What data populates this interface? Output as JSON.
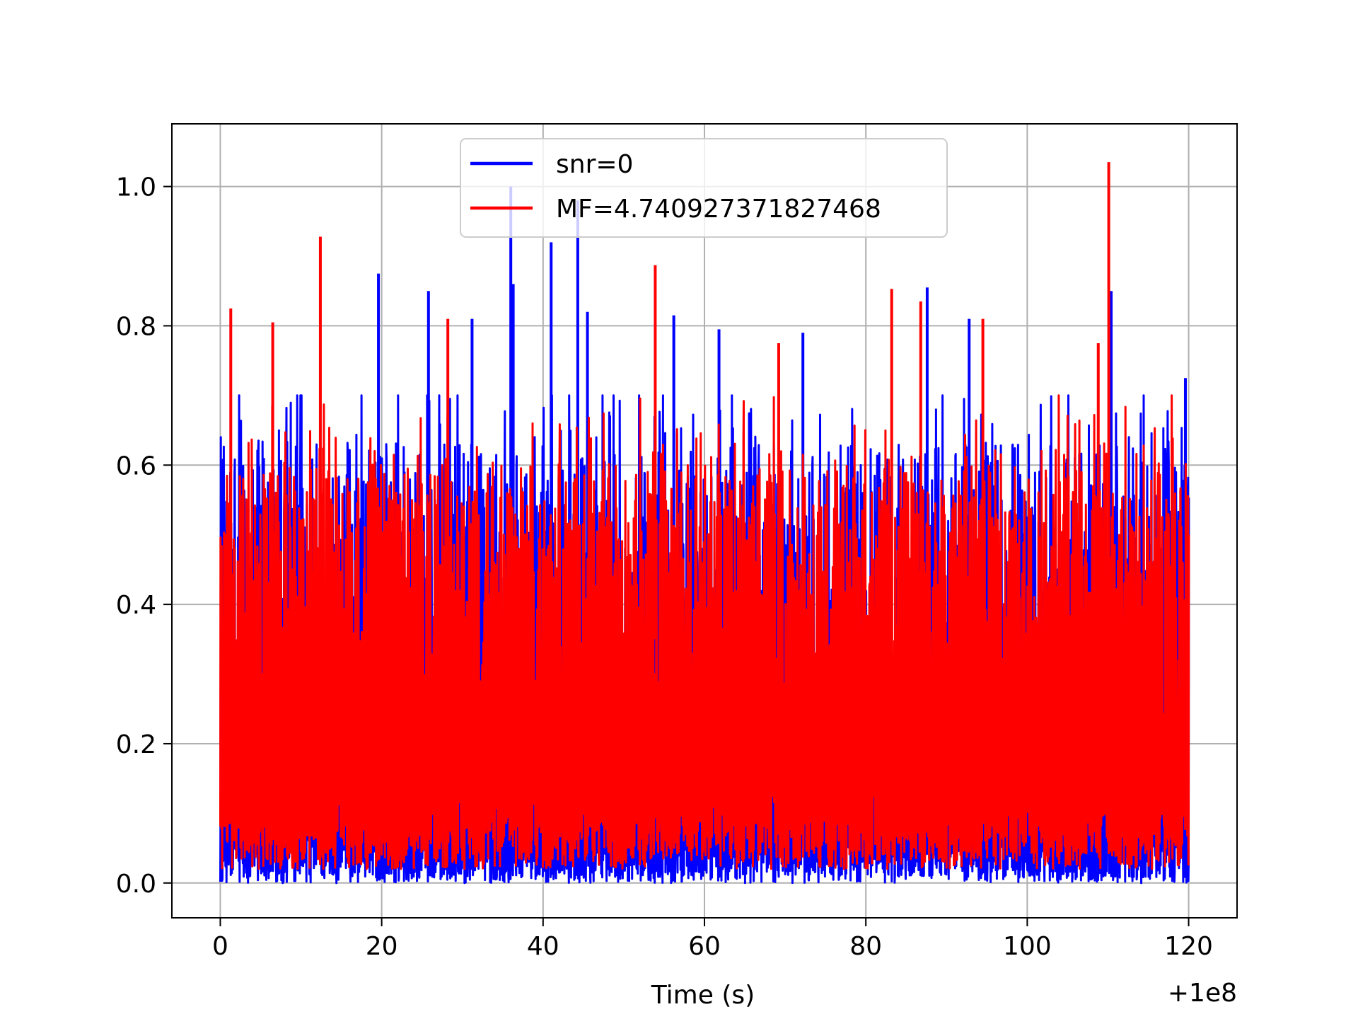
{
  "chart_data": {
    "type": "line",
    "title": "",
    "xlabel": "Time (s)",
    "ylabel": "",
    "x_offset_label": "+1e8",
    "xlim": [
      -6,
      126
    ],
    "ylim": [
      -0.05,
      1.09
    ],
    "x_ticks": [
      0,
      20,
      40,
      60,
      80,
      100,
      120
    ],
    "x_tick_labels": [
      "0",
      "20",
      "40",
      "60",
      "80",
      "100",
      "120"
    ],
    "y_ticks": [
      0.0,
      0.2,
      0.4,
      0.6,
      0.8,
      1.0
    ],
    "y_tick_labels": [
      "0.0",
      "0.2",
      "0.4",
      "0.6",
      "0.8",
      "1.0"
    ],
    "grid": true,
    "legend_position": "upper-center",
    "series": [
      {
        "name": "snr=0",
        "color": "#0000ff",
        "x_range": [
          0,
          120
        ],
        "peaks": [
          {
            "x": 19.6,
            "y": 0.875
          },
          {
            "x": 25.8,
            "y": 0.85
          },
          {
            "x": 31.2,
            "y": 0.81
          },
          {
            "x": 36.0,
            "y": 1.0
          },
          {
            "x": 36.3,
            "y": 0.86
          },
          {
            "x": 41.0,
            "y": 0.92
          },
          {
            "x": 44.3,
            "y": 0.98
          },
          {
            "x": 45.5,
            "y": 0.82
          },
          {
            "x": 56.2,
            "y": 0.815
          },
          {
            "x": 61.8,
            "y": 0.795
          },
          {
            "x": 72.2,
            "y": 0.79
          },
          {
            "x": 87.6,
            "y": 0.855
          },
          {
            "x": 92.8,
            "y": 0.81
          },
          {
            "x": 110.4,
            "y": 0.85
          },
          {
            "x": 119.6,
            "y": 0.725
          }
        ]
      },
      {
        "name": "MF=4.740927371827468",
        "color": "#ff0000",
        "x_range": [
          0,
          120
        ],
        "peaks": [
          {
            "x": 1.3,
            "y": 0.825
          },
          {
            "x": 6.5,
            "y": 0.805
          },
          {
            "x": 12.4,
            "y": 0.928
          },
          {
            "x": 28.2,
            "y": 0.81
          },
          {
            "x": 53.9,
            "y": 0.887
          },
          {
            "x": 69.2,
            "y": 0.775
          },
          {
            "x": 83.2,
            "y": 0.853
          },
          {
            "x": 86.8,
            "y": 0.835
          },
          {
            "x": 94.5,
            "y": 0.81
          },
          {
            "x": 108.8,
            "y": 0.775
          },
          {
            "x": 110.1,
            "y": 1.035
          }
        ]
      }
    ]
  }
}
